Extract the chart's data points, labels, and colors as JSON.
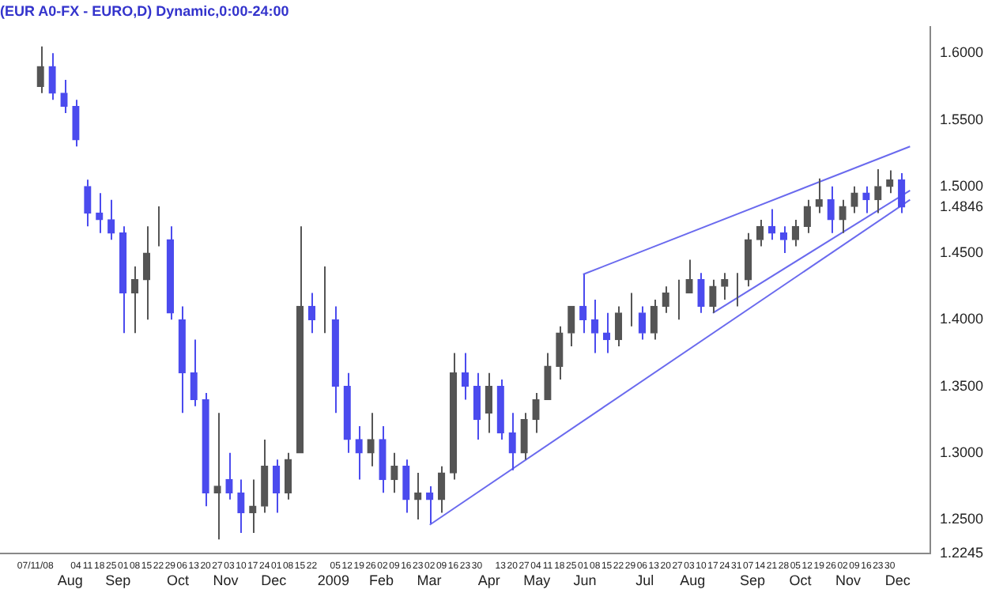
{
  "chart_data": {
    "type": "candlestick",
    "title": "(EUR A0-FX - EURO,D) Dynamic,0:00-24:00",
    "x": [
      "2008-07-14",
      "2008-07-21",
      "2008-07-28",
      "2008-08-04",
      "2008-08-11",
      "2008-08-18",
      "2008-08-25",
      "2008-09-01",
      "2008-09-08",
      "2008-09-15",
      "2008-09-22",
      "2008-09-29",
      "2008-10-06",
      "2008-10-13",
      "2008-10-20",
      "2008-10-27",
      "2008-11-03",
      "2008-11-10",
      "2008-11-17",
      "2008-11-24",
      "2008-12-01",
      "2008-12-08",
      "2008-12-15",
      "2008-12-22",
      "2008-12-29",
      "2009-01-05",
      "2009-01-12",
      "2009-01-19",
      "2009-01-26",
      "2009-02-02",
      "2009-02-09",
      "2009-02-16",
      "2009-02-23",
      "2009-03-02",
      "2009-03-09",
      "2009-03-16",
      "2009-03-23",
      "2009-03-30",
      "2009-04-06",
      "2009-04-13",
      "2009-04-20",
      "2009-04-27",
      "2009-05-04",
      "2009-05-11",
      "2009-05-18",
      "2009-05-25",
      "2009-06-01",
      "2009-06-08",
      "2009-06-15",
      "2009-06-22",
      "2009-06-29",
      "2009-07-06",
      "2009-07-13",
      "2009-07-20",
      "2009-07-27",
      "2009-08-03",
      "2009-08-10",
      "2009-08-17",
      "2009-08-24",
      "2009-08-31",
      "2009-09-07",
      "2009-09-14",
      "2009-09-21",
      "2009-09-28",
      "2009-10-05",
      "2009-10-12",
      "2009-10-19",
      "2009-10-26",
      "2009-11-02",
      "2009-11-09",
      "2009-11-16",
      "2009-11-23",
      "2009-11-30",
      "2009-12-07"
    ],
    "ohlc": [
      [
        1.575,
        1.605,
        1.57,
        1.59
      ],
      [
        1.59,
        1.6,
        1.565,
        1.57
      ],
      [
        1.57,
        1.58,
        1.555,
        1.56
      ],
      [
        1.56,
        1.565,
        1.53,
        1.535
      ],
      [
        1.5,
        1.505,
        1.47,
        1.48
      ],
      [
        1.48,
        1.495,
        1.465,
        1.475
      ],
      [
        1.475,
        1.49,
        1.46,
        1.465
      ],
      [
        1.465,
        1.47,
        1.39,
        1.42
      ],
      [
        1.42,
        1.44,
        1.39,
        1.43
      ],
      [
        1.43,
        1.47,
        1.4,
        1.45
      ],
      [
        1.46,
        1.485,
        1.455,
        1.46
      ],
      [
        1.46,
        1.47,
        1.4,
        1.405
      ],
      [
        1.4,
        1.41,
        1.33,
        1.36
      ],
      [
        1.36,
        1.385,
        1.335,
        1.34
      ],
      [
        1.34,
        1.345,
        1.26,
        1.27
      ],
      [
        1.27,
        1.33,
        1.235,
        1.275
      ],
      [
        1.28,
        1.3,
        1.265,
        1.27
      ],
      [
        1.27,
        1.28,
        1.24,
        1.255
      ],
      [
        1.255,
        1.28,
        1.24,
        1.26
      ],
      [
        1.26,
        1.31,
        1.255,
        1.29
      ],
      [
        1.29,
        1.295,
        1.255,
        1.27
      ],
      [
        1.27,
        1.3,
        1.265,
        1.295
      ],
      [
        1.3,
        1.47,
        1.3,
        1.41
      ],
      [
        1.41,
        1.42,
        1.39,
        1.4
      ],
      [
        1.4,
        1.44,
        1.39,
        1.4
      ],
      [
        1.4,
        1.41,
        1.33,
        1.35
      ],
      [
        1.35,
        1.36,
        1.3,
        1.31
      ],
      [
        1.31,
        1.32,
        1.28,
        1.3
      ],
      [
        1.3,
        1.33,
        1.29,
        1.31
      ],
      [
        1.31,
        1.32,
        1.27,
        1.28
      ],
      [
        1.28,
        1.3,
        1.27,
        1.29
      ],
      [
        1.29,
        1.295,
        1.255,
        1.265
      ],
      [
        1.265,
        1.285,
        1.25,
        1.27
      ],
      [
        1.27,
        1.275,
        1.247,
        1.265
      ],
      [
        1.265,
        1.29,
        1.255,
        1.285
      ],
      [
        1.285,
        1.375,
        1.28,
        1.36
      ],
      [
        1.36,
        1.375,
        1.34,
        1.35
      ],
      [
        1.35,
        1.36,
        1.31,
        1.325
      ],
      [
        1.33,
        1.36,
        1.315,
        1.35
      ],
      [
        1.35,
        1.355,
        1.31,
        1.315
      ],
      [
        1.315,
        1.33,
        1.287,
        1.3
      ],
      [
        1.3,
        1.33,
        1.295,
        1.325
      ],
      [
        1.325,
        1.345,
        1.315,
        1.34
      ],
      [
        1.34,
        1.375,
        1.34,
        1.365
      ],
      [
        1.365,
        1.395,
        1.355,
        1.39
      ],
      [
        1.39,
        1.41,
        1.38,
        1.41
      ],
      [
        1.41,
        1.434,
        1.39,
        1.4
      ],
      [
        1.4,
        1.415,
        1.375,
        1.39
      ],
      [
        1.39,
        1.405,
        1.375,
        1.385
      ],
      [
        1.385,
        1.41,
        1.38,
        1.405
      ],
      [
        1.405,
        1.42,
        1.395,
        1.405
      ],
      [
        1.405,
        1.41,
        1.385,
        1.39
      ],
      [
        1.39,
        1.415,
        1.385,
        1.41
      ],
      [
        1.41,
        1.425,
        1.405,
        1.42
      ],
      [
        1.42,
        1.43,
        1.4,
        1.42
      ],
      [
        1.42,
        1.445,
        1.42,
        1.43
      ],
      [
        1.43,
        1.435,
        1.405,
        1.41
      ],
      [
        1.41,
        1.43,
        1.405,
        1.425
      ],
      [
        1.425,
        1.435,
        1.415,
        1.43
      ],
      [
        1.43,
        1.435,
        1.41,
        1.43
      ],
      [
        1.43,
        1.465,
        1.425,
        1.46
      ],
      [
        1.46,
        1.475,
        1.455,
        1.47
      ],
      [
        1.47,
        1.483,
        1.46,
        1.465
      ],
      [
        1.465,
        1.47,
        1.45,
        1.46
      ],
      [
        1.46,
        1.475,
        1.455,
        1.47
      ],
      [
        1.47,
        1.49,
        1.465,
        1.485
      ],
      [
        1.485,
        1.506,
        1.48,
        1.49
      ],
      [
        1.49,
        1.5,
        1.465,
        1.475
      ],
      [
        1.475,
        1.49,
        1.465,
        1.485
      ],
      [
        1.485,
        1.5,
        1.48,
        1.495
      ],
      [
        1.495,
        1.5,
        1.48,
        1.49
      ],
      [
        1.49,
        1.513,
        1.48,
        1.5
      ],
      [
        1.5,
        1.512,
        1.495,
        1.505
      ],
      [
        1.505,
        1.51,
        1.48,
        1.4846
      ]
    ],
    "colors": [
      "#555555",
      "#4b4bee",
      "#4b4bee",
      "#4b4bee",
      "#4b4bee",
      "#4b4bee",
      "#4b4bee",
      "#4b4bee",
      "#555555",
      "#555555",
      "#555555",
      "#4b4bee",
      "#4b4bee",
      "#4b4bee",
      "#4b4bee",
      "#555555",
      "#4b4bee",
      "#4b4bee",
      "#555555",
      "#555555",
      "#4b4bee",
      "#555555",
      "#555555",
      "#4b4bee",
      "#555555",
      "#4b4bee",
      "#4b4bee",
      "#4b4bee",
      "#555555",
      "#4b4bee",
      "#555555",
      "#4b4bee",
      "#555555",
      "#4b4bee",
      "#555555",
      "#555555",
      "#4b4bee",
      "#4b4bee",
      "#555555",
      "#4b4bee",
      "#4b4bee",
      "#555555",
      "#555555",
      "#555555",
      "#555555",
      "#555555",
      "#4b4bee",
      "#4b4bee",
      "#4b4bee",
      "#555555",
      "#555555",
      "#4b4bee",
      "#555555",
      "#555555",
      "#555555",
      "#555555",
      "#4b4bee",
      "#555555",
      "#555555",
      "#555555",
      "#555555",
      "#555555",
      "#4b4bee",
      "#4b4bee",
      "#555555",
      "#555555",
      "#555555",
      "#4b4bee",
      "#555555",
      "#555555",
      "#4b4bee",
      "#555555",
      "#555555",
      "#4b4bee"
    ],
    "series": [
      {
        "type": "line",
        "color": "#6a6aee",
        "x": [
          "2009-03-02",
          "2009-12-12"
        ],
        "values": [
          1.246,
          1.49
        ]
      },
      {
        "type": "line",
        "color": "#6a6aee",
        "x": [
          "2009-08-17",
          "2009-12-12"
        ],
        "values": [
          1.405,
          1.497
        ]
      },
      {
        "type": "line",
        "color": "#6a6aee",
        "x": [
          "2009-06-01",
          "2009-12-12"
        ],
        "values": [
          1.434,
          1.53
        ]
      }
    ],
    "xlim": [
      "2008-06-24",
      "2009-12-20"
    ],
    "xticks": [
      {
        "value": "2008-07-11",
        "label": "07/11/08"
      },
      {
        "value": "2008-08-04",
        "label": "04"
      },
      {
        "value": "2008-08-11",
        "label": "11"
      },
      {
        "value": "2008-08-18",
        "label": "18"
      },
      {
        "value": "2008-08-25",
        "label": "25"
      },
      {
        "value": "2008-09-01",
        "label": "01"
      },
      {
        "value": "2008-09-08",
        "label": "08"
      },
      {
        "value": "2008-09-15",
        "label": "15"
      },
      {
        "value": "2008-09-22",
        "label": "22"
      },
      {
        "value": "2008-09-29",
        "label": "29"
      },
      {
        "value": "2008-10-06",
        "label": "06"
      },
      {
        "value": "2008-10-13",
        "label": "13"
      },
      {
        "value": "2008-10-20",
        "label": "20"
      },
      {
        "value": "2008-10-27",
        "label": "27"
      },
      {
        "value": "2008-11-03",
        "label": "03"
      },
      {
        "value": "2008-11-10",
        "label": "10"
      },
      {
        "value": "2008-11-17",
        "label": "17"
      },
      {
        "value": "2008-11-24",
        "label": "24"
      },
      {
        "value": "2008-12-01",
        "label": "01"
      },
      {
        "value": "2008-12-08",
        "label": "08"
      },
      {
        "value": "2008-12-15",
        "label": "15"
      },
      {
        "value": "2008-12-22",
        "label": "22"
      },
      {
        "value": "2009-01-05",
        "label": "05"
      },
      {
        "value": "2009-01-12",
        "label": "12"
      },
      {
        "value": "2009-01-19",
        "label": "19"
      },
      {
        "value": "2009-01-26",
        "label": "26"
      },
      {
        "value": "2009-02-02",
        "label": "02"
      },
      {
        "value": "2009-02-09",
        "label": "09"
      },
      {
        "value": "2009-02-16",
        "label": "16"
      },
      {
        "value": "2009-02-23",
        "label": "23"
      },
      {
        "value": "2009-03-02",
        "label": "02"
      },
      {
        "value": "2009-03-09",
        "label": "09"
      },
      {
        "value": "2009-03-16",
        "label": "16"
      },
      {
        "value": "2009-03-23",
        "label": "23"
      },
      {
        "value": "2009-03-30",
        "label": "30"
      },
      {
        "value": "2009-04-13",
        "label": "13"
      },
      {
        "value": "2009-04-20",
        "label": "20"
      },
      {
        "value": "2009-04-27",
        "label": "27"
      },
      {
        "value": "2009-05-04",
        "label": "04"
      },
      {
        "value": "2009-05-11",
        "label": "11"
      },
      {
        "value": "2009-05-18",
        "label": "18"
      },
      {
        "value": "2009-05-25",
        "label": "25"
      },
      {
        "value": "2009-06-01",
        "label": "01"
      },
      {
        "value": "2009-06-08",
        "label": "08"
      },
      {
        "value": "2009-06-15",
        "label": "15"
      },
      {
        "value": "2009-06-22",
        "label": "22"
      },
      {
        "value": "2009-06-29",
        "label": "29"
      },
      {
        "value": "2009-07-06",
        "label": "06"
      },
      {
        "value": "2009-07-13",
        "label": "13"
      },
      {
        "value": "2009-07-20",
        "label": "20"
      },
      {
        "value": "2009-07-27",
        "label": "27"
      },
      {
        "value": "2009-08-03",
        "label": "03"
      },
      {
        "value": "2009-08-10",
        "label": "10"
      },
      {
        "value": "2009-08-17",
        "label": "17"
      },
      {
        "value": "2009-08-24",
        "label": "24"
      },
      {
        "value": "2009-08-31",
        "label": "31"
      },
      {
        "value": "2009-09-07",
        "label": "07"
      },
      {
        "value": "2009-09-14",
        "label": "14"
      },
      {
        "value": "2009-09-21",
        "label": "21"
      },
      {
        "value": "2009-09-28",
        "label": "28"
      },
      {
        "value": "2009-10-05",
        "label": "05"
      },
      {
        "value": "2009-10-12",
        "label": "12"
      },
      {
        "value": "2009-10-19",
        "label": "19"
      },
      {
        "value": "2009-10-26",
        "label": "26"
      },
      {
        "value": "2009-11-02",
        "label": "02"
      },
      {
        "value": "2009-11-09",
        "label": "09"
      },
      {
        "value": "2009-11-16",
        "label": "16"
      },
      {
        "value": "2009-11-23",
        "label": "23"
      },
      {
        "value": "2009-11-30",
        "label": "30"
      }
    ],
    "x2lim": [
      "2008-06-24",
      "2009-12-20"
    ],
    "x2ticks": [
      {
        "value": "2008-08-04",
        "label": "Aug"
      },
      {
        "value": "2008-09-01",
        "label": "Sep"
      },
      {
        "value": "2008-10-06",
        "label": "Oct"
      },
      {
        "value": "2008-11-03",
        "label": "Nov"
      },
      {
        "value": "2008-12-01",
        "label": "Dec"
      },
      {
        "value": "2009-01-05",
        "label": "2009"
      },
      {
        "value": "2009-02-02",
        "label": "Feb"
      },
      {
        "value": "2009-03-02",
        "label": "Mar"
      },
      {
        "value": "2009-04-06",
        "label": "Apr"
      },
      {
        "value": "2009-05-04",
        "label": "May"
      },
      {
        "value": "2009-06-01",
        "label": "Jun"
      },
      {
        "value": "2009-07-06",
        "label": "Jul"
      },
      {
        "value": "2009-08-03",
        "label": "Aug"
      },
      {
        "value": "2009-09-07",
        "label": "Sep"
      },
      {
        "value": "2009-10-05",
        "label": "Oct"
      },
      {
        "value": "2009-11-02",
        "label": "Nov"
      },
      {
        "value": "2009-12-01",
        "label": "Dec"
      }
    ],
    "ylim": [
      1.2245,
      1.62
    ],
    "yticks": [
      {
        "value": 1.2245,
        "label": "1.2245"
      },
      {
        "value": 1.25,
        "label": "1.2500"
      },
      {
        "value": 1.3,
        "label": "1.3000"
      },
      {
        "value": 1.35,
        "label": "1.3500"
      },
      {
        "value": 1.4,
        "label": "1.4000"
      },
      {
        "value": 1.45,
        "label": "1.4500"
      },
      {
        "value": 1.4846,
        "label": "1.4846"
      },
      {
        "value": 1.5,
        "label": "1.5000"
      },
      {
        "value": 1.55,
        "label": "1.5500"
      },
      {
        "value": 1.6,
        "label": "1.6000"
      }
    ],
    "legend": false,
    "grid": false
  }
}
